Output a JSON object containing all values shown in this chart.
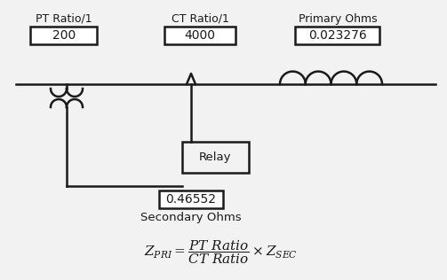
{
  "bg_color": "#f2f2f2",
  "line_color": "#1a1a1a",
  "text_color": "#1a1a1a",
  "pt_ratio_label": "PT Ratio/1",
  "pt_ratio_value": "200",
  "ct_ratio_label": "CT Ratio/1",
  "ct_ratio_value": "4000",
  "primary_ohms_label": "Primary Ohms",
  "primary_ohms_value": "0.023276",
  "relay_label": "Relay",
  "secondary_ohms_value": "0.46552",
  "secondary_ohms_label": "Secondary Ohms",
  "figsize": [
    5.03,
    3.16
  ],
  "dpi": 100
}
